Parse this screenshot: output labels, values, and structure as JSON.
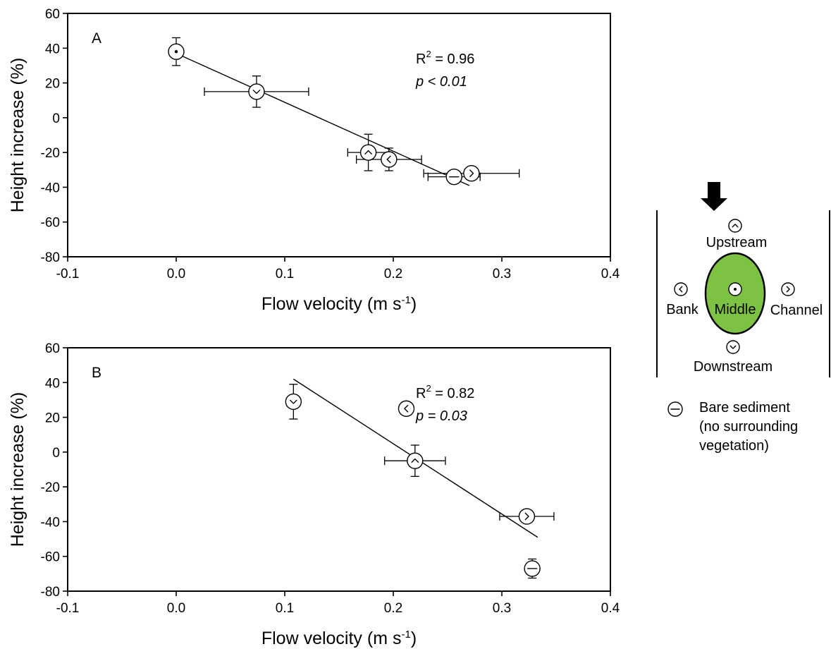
{
  "chart_data": [
    {
      "type": "scatter",
      "panel_label": "A",
      "xlabel": "Flow velocity (m s",
      "xlabel_sup": "-1",
      "xlabel_close": ")",
      "ylabel": "Height increase (%)",
      "xlim": [
        -0.1,
        0.4
      ],
      "ylim": [
        -80,
        60
      ],
      "x_ticks": [
        -0.1,
        0.0,
        0.1,
        0.2,
        0.3,
        0.4
      ],
      "x_tick_labels": [
        "-0.1",
        "0.0",
        "0.1",
        "0.2",
        "0.3",
        "0.4"
      ],
      "y_ticks": [
        -80,
        -60,
        -40,
        -20,
        0,
        20,
        40,
        60
      ],
      "y_tick_labels": [
        "-80",
        "-60",
        "-40",
        "-20",
        "0",
        "20",
        "40",
        "60"
      ],
      "r2_label": "R",
      "r2_sup": "2",
      "r2_value": " = 0.96",
      "p_text": "p < 0.01",
      "fit_line": {
        "x": [
          0.0,
          0.27
        ],
        "y": [
          37,
          -39
        ]
      },
      "points": [
        {
          "position": "middle",
          "x": 0.0,
          "y": 38,
          "xerr": 0,
          "yerr": 8
        },
        {
          "position": "downstream",
          "x": 0.074,
          "y": 15,
          "xerr": 0.048,
          "yerr": 9
        },
        {
          "position": "upstream",
          "x": 0.177,
          "y": -20,
          "xerr": 0.019,
          "yerr": 10.5
        },
        {
          "position": "bank",
          "x": 0.196,
          "y": -24,
          "xerr": 0.03,
          "yerr": 6.5
        },
        {
          "position": "bare",
          "x": 0.256,
          "y": -34,
          "xerr": 0.024,
          "yerr": 0
        },
        {
          "position": "channel",
          "x": 0.272,
          "y": -32,
          "xerr": 0.044,
          "yerr": 0
        }
      ]
    },
    {
      "type": "scatter",
      "panel_label": "B",
      "xlabel": "Flow velocity (m s",
      "xlabel_sup": "-1",
      "xlabel_close": ")",
      "ylabel": "Height increase (%)",
      "xlim": [
        -0.1,
        0.4
      ],
      "ylim": [
        -80,
        60
      ],
      "x_ticks": [
        -0.1,
        0.0,
        0.1,
        0.2,
        0.3,
        0.4
      ],
      "x_tick_labels": [
        "-0.1",
        "0.0",
        "0.1",
        "0.2",
        "0.3",
        "0.4"
      ],
      "y_ticks": [
        -80,
        -60,
        -40,
        -20,
        0,
        20,
        40,
        60
      ],
      "y_tick_labels": [
        "-80",
        "-60",
        "-40",
        "-20",
        "0",
        "20",
        "40",
        "60"
      ],
      "r2_label": "R",
      "r2_sup": "2",
      "r2_value": " = 0.82",
      "p_text": "p = 0.03",
      "fit_line": {
        "x": [
          0.108,
          0.333
        ],
        "y": [
          42,
          -49
        ]
      },
      "points": [
        {
          "position": "downstream",
          "x": 0.108,
          "y": 29,
          "xerr": 0,
          "yerr": 10
        },
        {
          "position": "bank",
          "x": 0.212,
          "y": 25,
          "xerr": 0,
          "yerr": 0
        },
        {
          "position": "upstream",
          "x": 0.22,
          "y": -5,
          "xerr": 0.028,
          "yerr": 9
        },
        {
          "position": "channel",
          "x": 0.323,
          "y": -37,
          "xerr": 0.025,
          "yerr": 0
        },
        {
          "position": "bare",
          "x": 0.328,
          "y": -67,
          "xerr": 0,
          "yerr": 5.5
        }
      ]
    }
  ],
  "legend": {
    "upstream": "Upstream",
    "bank": "Bank",
    "middle": "Middle",
    "channel": "Channel",
    "downstream": "Downstream",
    "bare_line1": "Bare sediment",
    "bare_line2": "(no surrounding",
    "bare_line3": "vegetation)",
    "plant_color": "#7dc242",
    "arrow_icon": "flow-direction-arrow-icon"
  }
}
